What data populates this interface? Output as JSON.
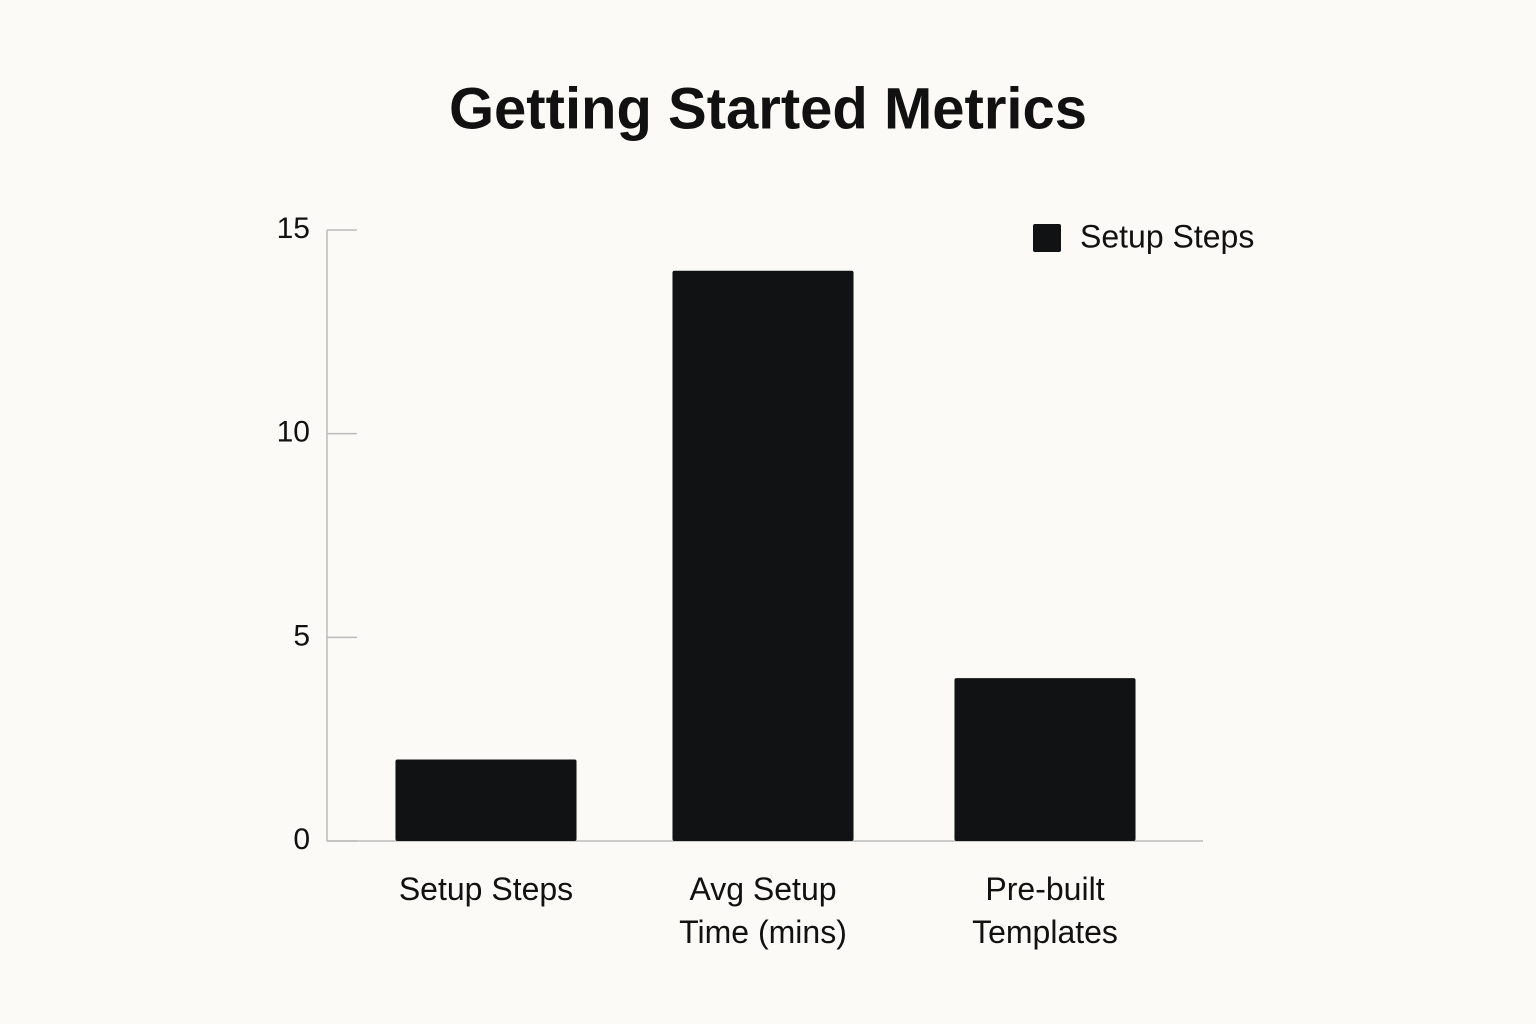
{
  "chart_data": {
    "type": "bar",
    "title": "Getting Started Metrics",
    "categories": [
      "Setup Steps",
      "Avg Setup Time (mins)",
      "Pre-built Templates"
    ],
    "series": [
      {
        "name": "Setup Steps",
        "color": "#111214",
        "values": [
          2,
          14,
          4
        ]
      }
    ],
    "ylim": [
      0,
      15
    ],
    "yticks": [
      0,
      5,
      10,
      15
    ],
    "grid": false,
    "legend": "upper-right"
  }
}
